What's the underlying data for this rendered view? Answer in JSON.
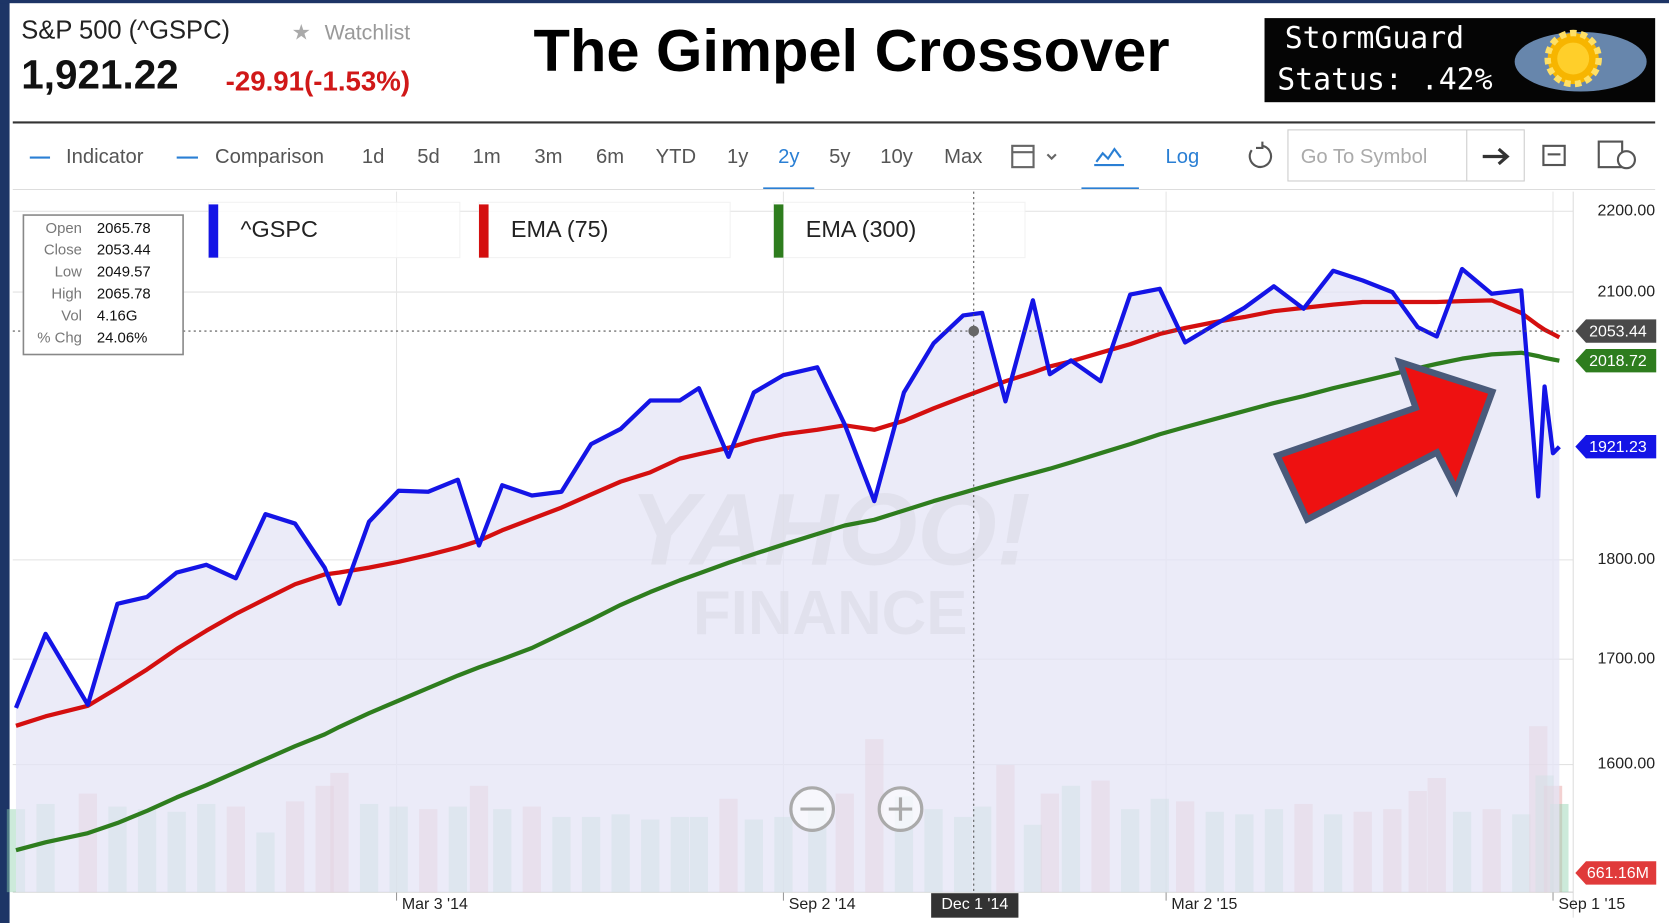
{
  "header": {
    "symbol": "S&P 500 (^GSPC)",
    "watchlist": "Watchlist",
    "price": "1,921.22",
    "change": "-29.91(-1.53%)",
    "title": "The Gimpel Crossover",
    "storm_name": "StormGuard",
    "storm_status": "Status: .42%"
  },
  "toolbar": {
    "indicator": "Indicator",
    "comparison": "Comparison",
    "ranges": [
      "1d",
      "5d",
      "1m",
      "3m",
      "6m",
      "YTD",
      "1y",
      "2y",
      "5y",
      "10y",
      "Max"
    ],
    "log": "Log",
    "search_placeholder": "Go To Symbol"
  },
  "tooltip": {
    "labels": [
      "Open",
      "Close",
      "Low",
      "High",
      "Vol",
      "% Chg"
    ],
    "values": [
      "2065.78",
      "2053.44",
      "2049.57",
      "2065.78",
      "4.16G",
      "24.06%"
    ]
  },
  "watermark": [
    "YAHOO!",
    "FINANCE"
  ],
  "chart_data": {
    "type": "line",
    "log": true,
    "grid": true,
    "x": [
      "2013-09-04",
      "2013-09-18",
      "2013-10-08",
      "2013-10-22",
      "2013-11-05",
      "2013-11-19",
      "2013-12-03",
      "2013-12-17",
      "2013-12-31",
      "2014-01-14",
      "2014-01-28",
      "2014-02-04",
      "2014-02-18",
      "2014-03-04",
      "2014-03-18",
      "2014-04-01",
      "2014-04-11",
      "2014-04-22",
      "2014-05-06",
      "2014-05-20",
      "2014-06-03",
      "2014-06-17",
      "2014-07-01",
      "2014-07-15",
      "2014-07-24",
      "2014-08-07",
      "2014-08-19",
      "2014-09-02",
      "2014-09-18",
      "2014-10-01",
      "2014-10-15",
      "2014-10-29",
      "2014-11-12",
      "2014-11-26",
      "2014-12-05",
      "2014-12-16",
      "2014-12-29",
      "2015-01-06",
      "2015-01-16",
      "2015-01-30",
      "2015-02-13",
      "2015-02-27",
      "2015-03-11",
      "2015-03-25",
      "2015-04-08",
      "2015-04-22",
      "2015-05-06",
      "2015-05-20",
      "2015-06-03",
      "2015-06-17",
      "2015-06-29",
      "2015-07-08",
      "2015-07-20",
      "2015-08-03",
      "2015-08-17",
      "2015-08-25",
      "2015-08-28",
      "2015-09-01",
      "2015-09-04"
    ],
    "series": [
      {
        "name": "^GSPC",
        "color": "#1414e6",
        "values": [
          1653,
          1725,
          1656,
          1755,
          1762,
          1787,
          1795,
          1781,
          1848,
          1838,
          1792,
          1755,
          1840,
          1873,
          1872,
          1885,
          1815,
          1879,
          1868,
          1872,
          1924,
          1941,
          1973,
          1973,
          1987,
          1910,
          1982,
          2002,
          2011,
          1946,
          1862,
          1982,
          2039,
          2072,
          2075,
          1972,
          2090,
          2003,
          2019,
          1995,
          2097,
          2104,
          2040,
          2061,
          2081,
          2107,
          2080,
          2126,
          2114,
          2100,
          2058,
          2047,
          2128,
          2098,
          2102,
          1867,
          1989,
          1914,
          1921.23
        ]
      },
      {
        "name": "EMA (75)",
        "color": "#d40f0f",
        "values": [
          1636,
          1645,
          1655,
          1672,
          1690,
          1710,
          1728,
          1745,
          1760,
          1775,
          1785,
          1787,
          1792,
          1798,
          1805,
          1813,
          1820,
          1831,
          1843,
          1855,
          1869,
          1883,
          1893,
          1908,
          1913,
          1920,
          1928,
          1935,
          1940,
          1945,
          1940,
          1950,
          1964,
          1977,
          1985,
          1995,
          2005,
          2012,
          2018,
          2028,
          2038,
          2050,
          2057,
          2064,
          2070,
          2077,
          2081,
          2085,
          2088,
          2088,
          2088,
          2088,
          2089,
          2090,
          2075,
          2060,
          2055,
          2050,
          2046
        ]
      },
      {
        "name": "EMA (300)",
        "color": "#2e7d1e",
        "values": [
          1523,
          1530,
          1538,
          1547,
          1558,
          1570,
          1581,
          1593,
          1605,
          1617,
          1628,
          1635,
          1648,
          1660,
          1672,
          1684,
          1692,
          1700,
          1711,
          1725,
          1739,
          1754,
          1767,
          1779,
          1786,
          1797,
          1806,
          1816,
          1827,
          1836,
          1842,
          1852,
          1862,
          1871,
          1877,
          1884,
          1892,
          1897,
          1904,
          1914,
          1924,
          1935,
          1943,
          1952,
          1961,
          1970,
          1978,
          1987,
          1995,
          2003,
          2010,
          2015,
          2021,
          2026,
          2028,
          2024,
          2022,
          2020,
          2018.72
        ]
      }
    ],
    "volume": [
      3200000000.0,
      3400000000.0,
      3800000000.0,
      3300000000.0,
      3200000000.0,
      3100000000.0,
      3400000000.0,
      3300000000.0,
      2300000000.0,
      3500000000.0,
      4100000000.0,
      4600000000.0,
      3400000000.0,
      3300000000.0,
      3200000000.0,
      3300000000.0,
      4100000000.0,
      3200000000.0,
      3300000000.0,
      2900000000.0,
      2900000000.0,
      3000000000.0,
      2800000000.0,
      2900000000.0,
      2900000000.0,
      3600000000.0,
      2800000000.0,
      2900000000.0,
      3300000000.0,
      3800000000.0,
      5900000000.0,
      3700000000.0,
      3200000000.0,
      2900000000.0,
      3300000000.0,
      4900000000.0,
      2600000000.0,
      3800000000.0,
      4100000000.0,
      4300000000.0,
      3200000000.0,
      3600000000.0,
      3500000000.0,
      3100000000.0,
      3000000000.0,
      3200000000.0,
      3400000000.0,
      3000000000.0,
      3100000000.0,
      3200000000.0,
      3900000000.0,
      4400000000.0,
      3100000000.0,
      3200000000.0,
      3000000000.0,
      6400000000.0,
      4500000000.0,
      4100000000.0,
      3400000000.0
    ],
    "volume_lim": [
      0,
      28000000000.0
    ],
    "volume_tag": "661.16M",
    "xlim": [
      "2013-09-04",
      "2015-09-04"
    ],
    "xticks": [
      {
        "value": "2014-03-03",
        "label": "Mar 3 '14"
      },
      {
        "value": "2014-09-02",
        "label": "Sep 2 '14"
      },
      {
        "value": "2015-03-02",
        "label": "Mar 2 '15"
      },
      {
        "value": "2015-09-01",
        "label": "Sep 1 '15"
      }
    ],
    "ylim": [
      1465,
      2225
    ],
    "yticks": [
      {
        "value": 1600,
        "label": "1600.00"
      },
      {
        "value": 1700,
        "label": "1700.00"
      },
      {
        "value": 1800,
        "label": "1800.00"
      },
      {
        "value": 2100,
        "label": "2100.00"
      },
      {
        "value": 2200,
        "label": "2200.00"
      }
    ],
    "crosshair": {
      "x": "2014-12-01",
      "x_label": "Dec 1 '14",
      "value": 2053.44
    }
  }
}
